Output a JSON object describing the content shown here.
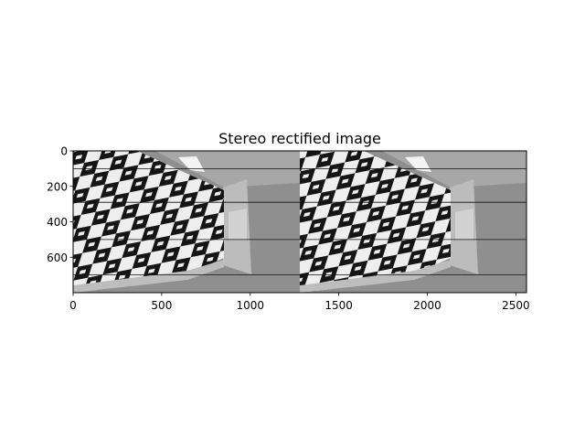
{
  "chart_data": {
    "type": "image",
    "title": "Stereo rectified image",
    "xlabel": "",
    "ylabel": "",
    "xlim": [
      0,
      2560
    ],
    "ylim": [
      800,
      0
    ],
    "xticks": [
      0,
      500,
      1000,
      1500,
      2000,
      2500
    ],
    "xtick_labels": [
      "0",
      "500",
      "1000",
      "1500",
      "2000",
      "2500"
    ],
    "yticks": [
      0,
      200,
      400,
      600
    ],
    "ytick_labels": [
      "0",
      "200",
      "400",
      "600"
    ],
    "epipolar_lines_y": [
      100,
      290,
      500,
      700
    ],
    "image_split_x": 1280,
    "colormap": "gray",
    "grid": false
  }
}
